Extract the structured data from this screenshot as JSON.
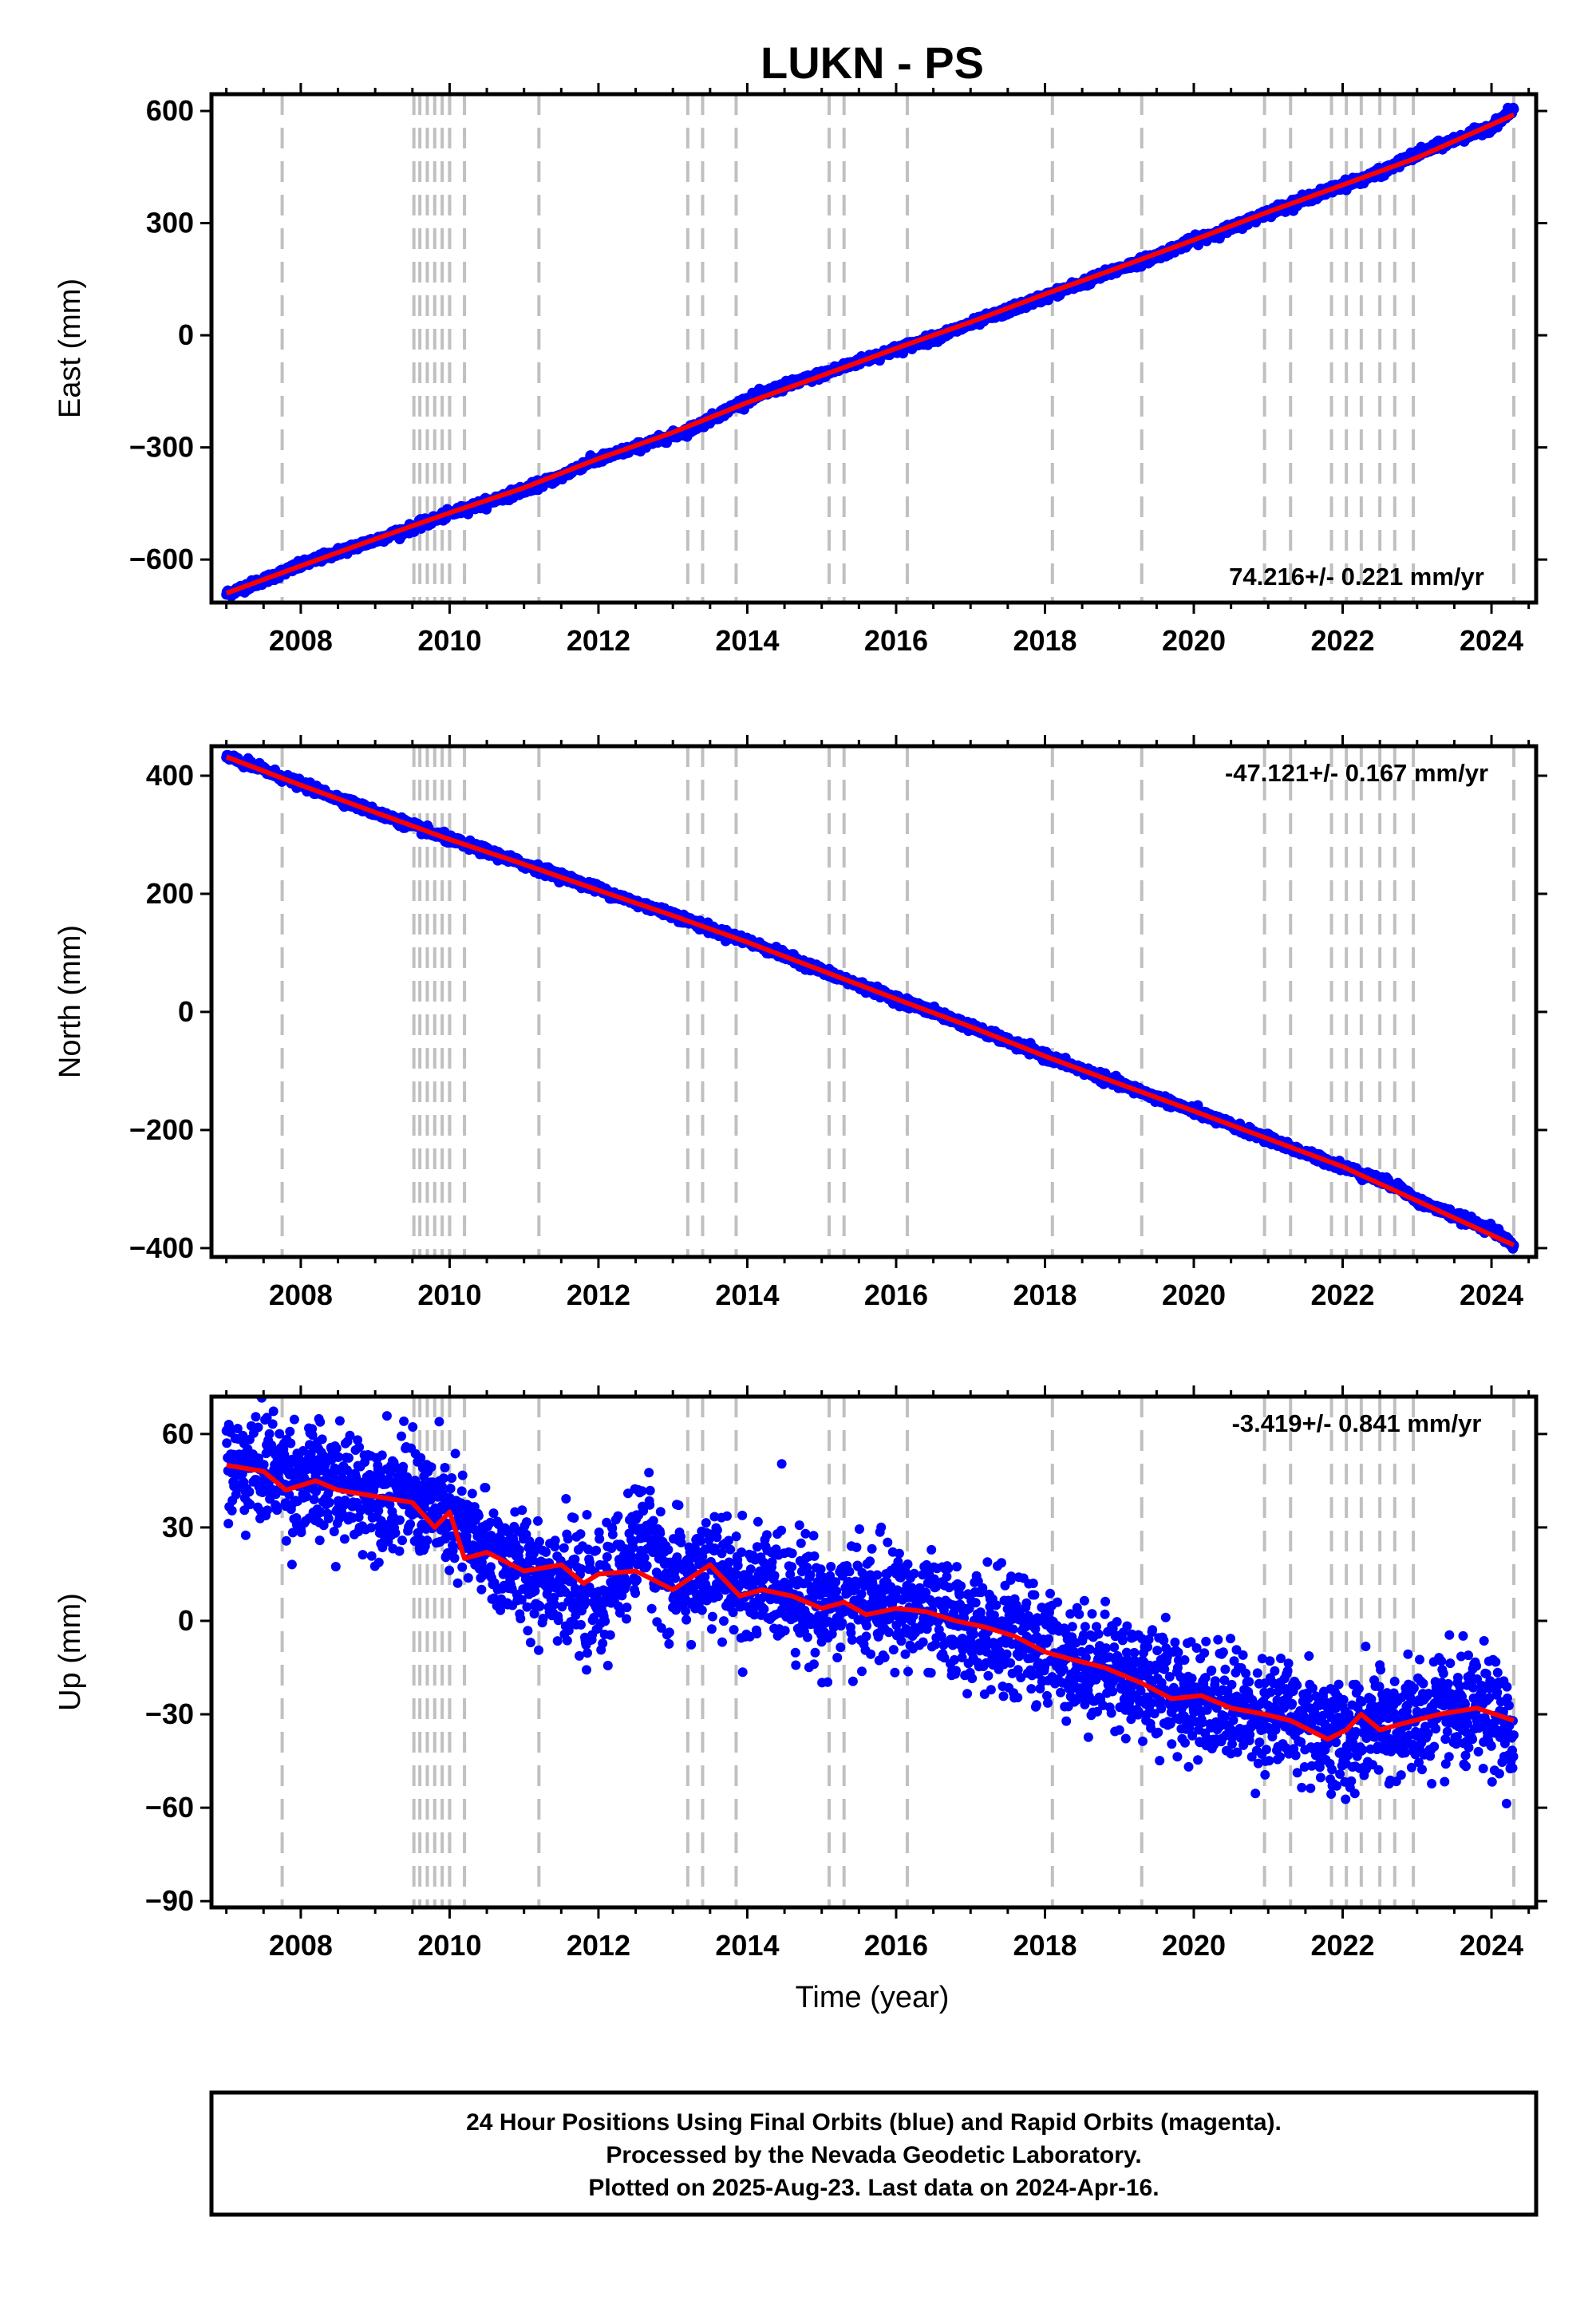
{
  "title": "LUKN - PS",
  "xlabel": "Time (year)",
  "footer": {
    "line1": "24 Hour Positions Using Final Orbits (blue) and Rapid Orbits (magenta).",
    "line2": "Processed by the Nevada Geodetic Laboratory.",
    "line3": "Plotted on 2025-Aug-23. Last data on 2024-Apr-16."
  },
  "colors": {
    "points": "#0000ff",
    "model": "#ff0000",
    "offsets": "#c0c0c0",
    "frame": "#000000"
  },
  "chart_data": [
    {
      "type": "scatter",
      "panel": "east",
      "ylabel": "East (mm)",
      "rate_label": "74.216+/- 0.221 mm/yr",
      "xlim": [
        2006.8,
        2024.6
      ],
      "ylim": [
        -715,
        645
      ],
      "x_ticks": [
        2008,
        2010,
        2012,
        2014,
        2016,
        2018,
        2020,
        2022,
        2024
      ],
      "x_tick_labels": [
        "2008",
        "2010",
        "2012",
        "2014",
        "2016",
        "2018",
        "2020",
        "2022",
        "2024"
      ],
      "y_ticks": [
        -600,
        -300,
        0,
        300,
        600
      ],
      "y_tick_labels": [
        "−600",
        "−300",
        "0",
        "300",
        "600"
      ],
      "offset_years": [
        2007.75,
        2009.52,
        2009.6,
        2009.7,
        2009.8,
        2009.9,
        2010.0,
        2010.2,
        2011.2,
        2013.2,
        2013.4,
        2013.85,
        2015.1,
        2015.3,
        2016.15,
        2018.1,
        2019.3,
        2020.95,
        2021.3,
        2021.85,
        2022.05,
        2022.25,
        2022.5,
        2022.7,
        2022.95,
        2024.3
      ],
      "series": [
        {
          "role": "observed",
          "x": [
            2007.0,
            2007.5,
            2008.0,
            2008.5,
            2009.0,
            2009.5,
            2010.0,
            2010.5,
            2011.0,
            2011.5,
            2011.8,
            2012.5,
            2012.7,
            2013.2,
            2013.5,
            2014.0,
            2014.5,
            2015.0,
            2015.5,
            2016.0,
            2016.5,
            2017.0,
            2017.5,
            2018.0,
            2018.5,
            2019.0,
            2019.5,
            2020.0,
            2020.5,
            2021.0,
            2021.5,
            2022.0,
            2022.5,
            2023.0,
            2023.5,
            2024.0,
            2024.3
          ],
          "y": [
            -692,
            -655,
            -615,
            -580,
            -548,
            -515,
            -478,
            -447,
            -413,
            -378,
            -345,
            -300,
            -288,
            -255,
            -225,
            -172,
            -136,
            -105,
            -70,
            -38,
            -8,
            30,
            66,
            103,
            140,
            178,
            212,
            254,
            286,
            329,
            365,
            401,
            434,
            485,
            522,
            558,
            605
          ]
        },
        {
          "role": "model",
          "x": [
            2007.0,
            2008.0,
            2009.0,
            2010.0,
            2011.0,
            2012.0,
            2013.0,
            2014.0,
            2015.0,
            2016.0,
            2017.0,
            2018.0,
            2019.0,
            2020.0,
            2021.0,
            2022.0,
            2023.0,
            2024.3
          ],
          "y": [
            -690,
            -617,
            -545,
            -475,
            -408,
            -330,
            -260,
            -180,
            -108,
            -35,
            35,
            110,
            182,
            255,
            330,
            402,
            475,
            590
          ]
        }
      ]
    },
    {
      "type": "scatter",
      "panel": "north",
      "ylabel": "North (mm)",
      "rate_label": "-47.121+/- 0.167 mm/yr",
      "xlim": [
        2006.8,
        2024.6
      ],
      "ylim": [
        -415,
        450
      ],
      "x_ticks": [
        2008,
        2010,
        2012,
        2014,
        2016,
        2018,
        2020,
        2022,
        2024
      ],
      "x_tick_labels": [
        "2008",
        "2010",
        "2012",
        "2014",
        "2016",
        "2018",
        "2020",
        "2022",
        "2024"
      ],
      "y_ticks": [
        -400,
        -200,
        0,
        200,
        400
      ],
      "y_tick_labels": [
        "−400",
        "−200",
        "0",
        "200",
        "400"
      ],
      "offset_years": [
        2007.75,
        2009.52,
        2009.6,
        2009.7,
        2009.8,
        2009.9,
        2010.0,
        2010.2,
        2011.2,
        2013.2,
        2013.4,
        2013.85,
        2015.1,
        2015.3,
        2016.15,
        2018.1,
        2019.3,
        2020.95,
        2021.3,
        2021.85,
        2022.05,
        2022.25,
        2022.5,
        2022.7,
        2022.95,
        2024.3
      ],
      "series": [
        {
          "role": "observed",
          "x": [
            2007.0,
            2007.5,
            2008.0,
            2008.5,
            2009.0,
            2009.5,
            2010.0,
            2010.5,
            2011.0,
            2011.5,
            2012.0,
            2012.5,
            2013.0,
            2013.5,
            2014.0,
            2014.5,
            2015.0,
            2015.5,
            2016.0,
            2016.5,
            2017.0,
            2017.5,
            2018.0,
            2018.5,
            2019.0,
            2019.5,
            2020.0,
            2020.5,
            2021.0,
            2021.5,
            2022.0,
            2022.5,
            2022.8,
            2023.0,
            2023.5,
            2024.0,
            2024.3
          ],
          "y": [
            432,
            410,
            385,
            362,
            338,
            315,
            292,
            272,
            250,
            230,
            208,
            185,
            165,
            140,
            120,
            95,
            70,
            45,
            22,
            0,
            -25,
            -50,
            -75,
            -98,
            -122,
            -145,
            -168,
            -192,
            -215,
            -240,
            -262,
            -285,
            -300,
            -320,
            -345,
            -368,
            -395
          ]
        },
        {
          "role": "model",
          "x": [
            2007.0,
            2008.0,
            2009.0,
            2010.0,
            2011.0,
            2012.0,
            2013.0,
            2014.0,
            2015.0,
            2016.0,
            2017.0,
            2018.0,
            2019.0,
            2020.0,
            2021.0,
            2022.0,
            2023.0,
            2024.3
          ],
          "y": [
            432,
            384,
            338,
            292,
            250,
            206,
            163,
            118,
            70,
            22,
            -25,
            -75,
            -122,
            -168,
            -215,
            -262,
            -320,
            -395
          ]
        }
      ]
    },
    {
      "type": "scatter",
      "panel": "up",
      "ylabel": "Up (mm)",
      "xlabel": "Time (year)",
      "rate_label": "-3.419+/- 0.841 mm/yr",
      "xlim": [
        2006.8,
        2024.6
      ],
      "ylim": [
        -92,
        72
      ],
      "x_ticks": [
        2008,
        2010,
        2012,
        2014,
        2016,
        2018,
        2020,
        2022,
        2024
      ],
      "x_tick_labels": [
        "2008",
        "2010",
        "2012",
        "2014",
        "2016",
        "2018",
        "2020",
        "2022",
        "2024"
      ],
      "y_ticks": [
        -90,
        -60,
        -30,
        0,
        30,
        60
      ],
      "y_tick_labels": [
        "−90",
        "−60",
        "−30",
        "0",
        "30",
        "60"
      ],
      "offset_years": [
        2007.75,
        2009.52,
        2009.6,
        2009.7,
        2009.8,
        2009.9,
        2010.0,
        2010.2,
        2011.2,
        2013.2,
        2013.4,
        2013.85,
        2015.1,
        2015.3,
        2016.15,
        2018.1,
        2019.3,
        2020.95,
        2021.3,
        2021.85,
        2022.05,
        2022.25,
        2022.5,
        2022.7,
        2022.95,
        2024.3
      ],
      "scatter_spread_mm": 9,
      "series": [
        {
          "role": "model",
          "x": [
            2007.0,
            2007.5,
            2007.8,
            2008.2,
            2008.5,
            2009.0,
            2009.5,
            2009.8,
            2010.0,
            2010.2,
            2010.5,
            2011.0,
            2011.5,
            2011.8,
            2012.0,
            2012.5,
            2013.0,
            2013.5,
            2013.9,
            2014.2,
            2014.6,
            2015.0,
            2015.3,
            2015.6,
            2016.0,
            2016.4,
            2016.8,
            2017.2,
            2017.6,
            2018.0,
            2018.3,
            2018.8,
            2019.3,
            2019.7,
            2020.1,
            2020.5,
            2020.95,
            2021.3,
            2021.8,
            2022.05,
            2022.25,
            2022.5,
            2022.8,
            2023.3,
            2023.8,
            2024.3
          ],
          "y": [
            50,
            48,
            42,
            45,
            42,
            40,
            38,
            30,
            35,
            20,
            22,
            16,
            18,
            12,
            15,
            16,
            10,
            18,
            8,
            10,
            8,
            4,
            6,
            2,
            4,
            3,
            0,
            -2,
            -5,
            -10,
            -12,
            -15,
            -20,
            -25,
            -24,
            -28,
            -30,
            -32,
            -38,
            -35,
            -30,
            -35,
            -33,
            -30,
            -28,
            -32
          ]
        },
        {
          "role": "observed_mean",
          "x": [
            2007.0,
            2007.5,
            2008.0,
            2008.5,
            2009.0,
            2009.5,
            2010.0,
            2010.5,
            2011.0,
            2011.5,
            2011.9,
            2012.3,
            2012.6,
            2013.0,
            2013.5,
            2014.0,
            2014.5,
            2015.0,
            2015.5,
            2016.0,
            2016.5,
            2017.0,
            2017.5,
            2018.0,
            2018.5,
            2019.0,
            2019.5,
            2020.0,
            2020.5,
            2021.0,
            2021.5,
            2022.0,
            2022.5,
            2023.0,
            2023.5,
            2024.0,
            2024.3
          ],
          "y": [
            48,
            50,
            45,
            43,
            42,
            40,
            32,
            22,
            16,
            14,
            4,
            16,
            30,
            12,
            16,
            10,
            12,
            5,
            6,
            5,
            2,
            -2,
            -5,
            -8,
            -14,
            -16,
            -20,
            -25,
            -27,
            -30,
            -32,
            -38,
            -34,
            -32,
            -30,
            -30,
            -38
          ]
        }
      ]
    }
  ]
}
